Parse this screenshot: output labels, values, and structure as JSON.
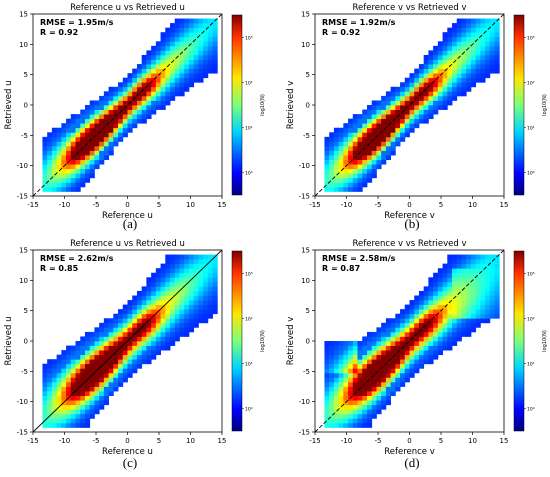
{
  "captions": [
    "(a)",
    "(b)",
    "(c)",
    "(d)"
  ],
  "colors": {
    "diagonal": "#000000",
    "frame": "#000000",
    "background": "#ffffff"
  },
  "colormap": "jet",
  "chart_data": [
    {
      "type": "heatmap",
      "title": "Reference u vs Retrieved u",
      "xlabel": "Reference u",
      "ylabel": "Retrieved u",
      "xlim": [
        -15,
        15
      ],
      "ylim": [
        -15,
        15
      ],
      "xticks": [
        -15,
        -10,
        -5,
        0,
        5,
        10,
        15
      ],
      "yticks": [
        -15,
        -10,
        -5,
        0,
        5,
        10,
        15
      ],
      "annotations": [
        "RMSE = 1.95m/s",
        "R = 0.92"
      ],
      "colorbar_label": "log10(N)",
      "colorbar_ticks": [
        "10⁰",
        "10¹",
        "10²",
        "10³"
      ],
      "diagonal": "y = x, dashed",
      "rmse": 1.95,
      "r": 0.92
    },
    {
      "type": "heatmap",
      "title": "Reference v vs Retrieved v",
      "xlabel": "Reference v",
      "ylabel": "Retrieved v",
      "xlim": [
        -15,
        15
      ],
      "ylim": [
        -15,
        15
      ],
      "xticks": [
        -15,
        -10,
        -5,
        0,
        5,
        10,
        15
      ],
      "yticks": [
        -15,
        -10,
        -5,
        0,
        5,
        10,
        15
      ],
      "annotations": [
        "RMSE = 1.92m/s",
        "R = 0.92"
      ],
      "colorbar_label": "log10(N)",
      "colorbar_ticks": [
        "10⁰",
        "10¹",
        "10²",
        "10³"
      ],
      "diagonal": "y = x, dashed",
      "rmse": 1.92,
      "r": 0.92
    },
    {
      "type": "heatmap",
      "title": "Reference u vs Retrieved u",
      "xlabel": "Reference u",
      "ylabel": "Retrieved u",
      "xlim": [
        -15,
        15
      ],
      "ylim": [
        -15,
        15
      ],
      "xticks": [
        -15,
        -10,
        -5,
        0,
        5,
        10,
        15
      ],
      "yticks": [
        -15,
        -10,
        -5,
        0,
        5,
        10,
        15
      ],
      "annotations": [
        "RMSE = 2.62m/s",
        "R = 0.85"
      ],
      "colorbar_label": "log10(N)",
      "colorbar_ticks": [
        "10⁰",
        "10¹",
        "10²",
        "10³"
      ],
      "diagonal": "y = x, solid",
      "rmse": 2.62,
      "r": 0.85
    },
    {
      "type": "heatmap",
      "title": "Reference v vs Retrieved v",
      "xlabel": "Reference v",
      "ylabel": "Retrieved v",
      "xlim": [
        -15,
        15
      ],
      "ylim": [
        -15,
        15
      ],
      "xticks": [
        -15,
        -10,
        -5,
        0,
        5,
        10,
        15
      ],
      "yticks": [
        -15,
        -10,
        -5,
        0,
        5,
        10,
        15
      ],
      "annotations": [
        "RMSE = 2.58m/s",
        "R = 0.87"
      ],
      "colorbar_label": "log10(N)",
      "colorbar_ticks": [
        "10⁰",
        "10¹",
        "10²",
        "10³"
      ],
      "diagonal": "y = x, dashed",
      "rmse": 2.58,
      "r": 0.87
    }
  ]
}
